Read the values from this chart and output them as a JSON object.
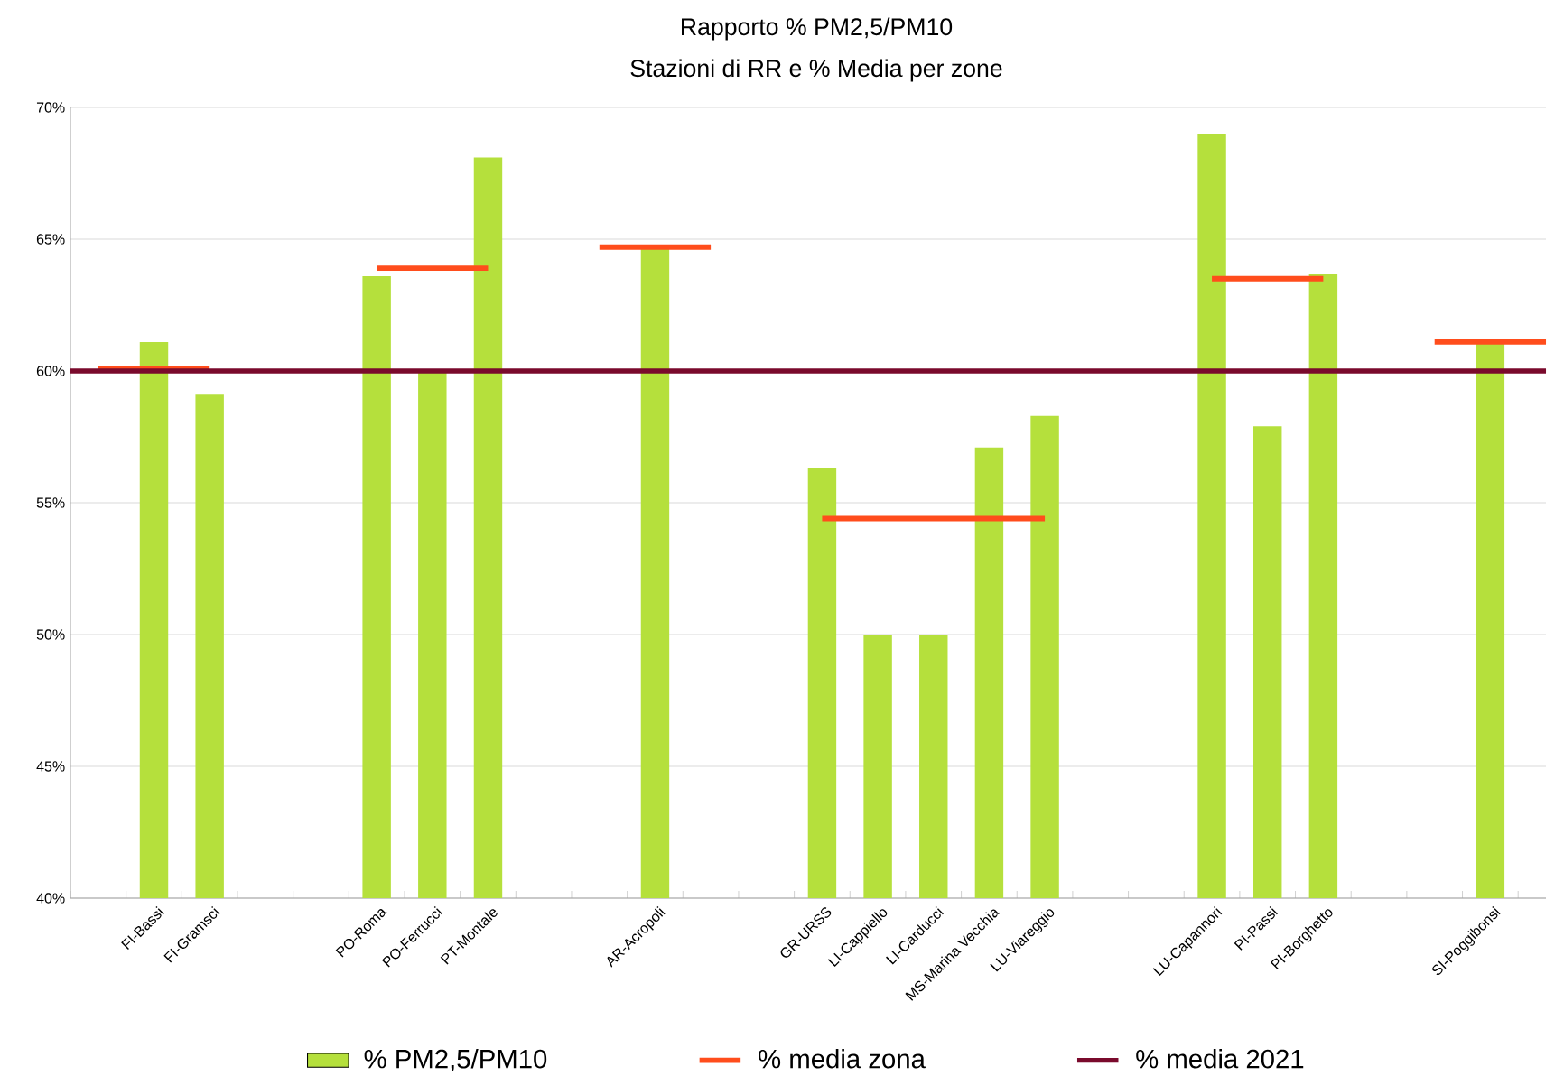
{
  "chart_data": {
    "type": "bar",
    "title": "Rapporto % PM2,5/PM10",
    "subtitle": "Stazioni di RR e % Media per zone",
    "categories": [
      null,
      "FI-Bassi",
      "FI-Gramsci",
      null,
      null,
      "PO-Roma",
      "PO-Ferrucci",
      "PT-Montale",
      null,
      null,
      "AR-Acropoli",
      null,
      null,
      "GR-URSS",
      "LI-Cappiello",
      "LI-Carducci",
      "MS-Marina Vecchia",
      "LU-Viareggio",
      null,
      null,
      "LU-Capannori",
      "PI-Passi",
      "PI-Borghetto",
      null,
      null,
      "SI-Poggibonsi",
      null
    ],
    "series": [
      {
        "name": "% PM2,5/PM10",
        "color": "#b5e03c",
        "values": [
          null,
          61.1,
          59.1,
          null,
          null,
          63.6,
          60.0,
          68.1,
          null,
          null,
          64.7,
          null,
          null,
          56.3,
          50.0,
          50.0,
          57.1,
          58.3,
          null,
          null,
          69.0,
          57.9,
          63.7,
          null,
          null,
          61.1,
          null
        ]
      },
      {
        "name": "% media zona",
        "type": "line",
        "color": "#ff4d1c",
        "values": [
          60.1,
          60.1,
          60.1,
          null,
          null,
          63.9,
          63.9,
          63.9,
          null,
          64.7,
          64.7,
          64.7,
          null,
          54.4,
          54.4,
          54.4,
          54.4,
          54.4,
          null,
          null,
          63.5,
          63.5,
          63.5,
          null,
          61.1,
          61.1,
          61.1
        ]
      }
    ],
    "ref_lines": [
      {
        "axis": "y",
        "value": 60,
        "label": "% media 2021",
        "color": "#7a0a2c"
      }
    ],
    "ylim": [
      40,
      70
    ],
    "yticks": [
      {
        "value": 40,
        "label": "40%"
      },
      {
        "value": 45,
        "label": "45%"
      },
      {
        "value": 50,
        "label": "50%"
      },
      {
        "value": 55,
        "label": "55%"
      },
      {
        "value": 60,
        "label": "60%"
      },
      {
        "value": 65,
        "label": "65%"
      },
      {
        "value": 70,
        "label": "70%"
      }
    ],
    "grid": "y",
    "legend": "bottom"
  }
}
